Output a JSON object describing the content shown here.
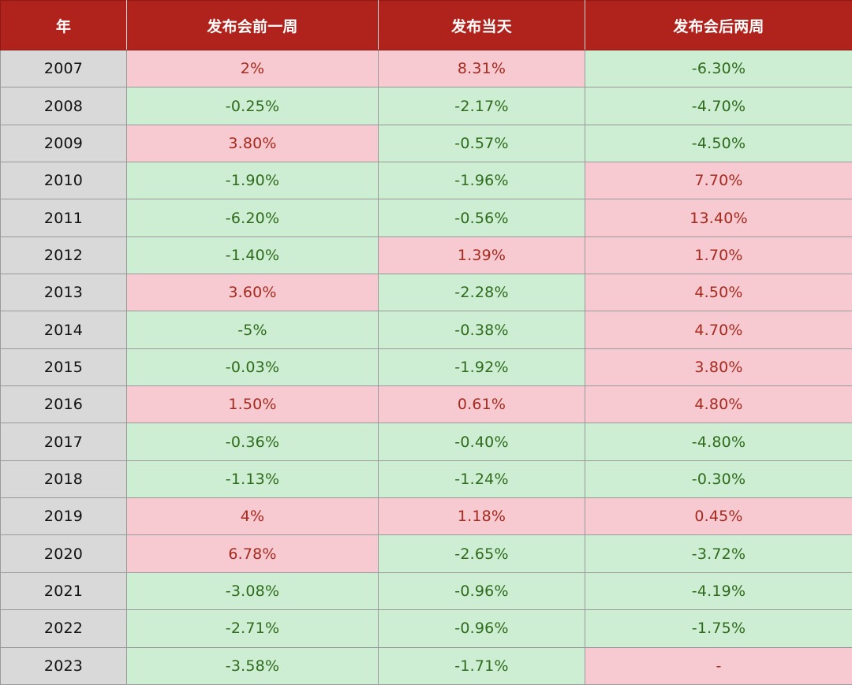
{
  "chart_data": {
    "type": "table",
    "columns": [
      "年",
      "发布会前一周",
      "发布当天",
      "发布会后两周"
    ],
    "rows": [
      {
        "year": "2007",
        "before_week": "2%",
        "launch_day": "8.31%",
        "after_two_weeks": "-6.30%"
      },
      {
        "year": "2008",
        "before_week": "-0.25%",
        "launch_day": "-2.17%",
        "after_two_weeks": "-4.70%"
      },
      {
        "year": "2009",
        "before_week": "3.80%",
        "launch_day": "-0.57%",
        "after_two_weeks": "-4.50%"
      },
      {
        "year": "2010",
        "before_week": "-1.90%",
        "launch_day": "-1.96%",
        "after_two_weeks": "7.70%"
      },
      {
        "year": "2011",
        "before_week": "-6.20%",
        "launch_day": "-0.56%",
        "after_two_weeks": "13.40%"
      },
      {
        "year": "2012",
        "before_week": "-1.40%",
        "launch_day": "1.39%",
        "after_two_weeks": "1.70%"
      },
      {
        "year": "2013",
        "before_week": "3.60%",
        "launch_day": "-2.28%",
        "after_two_weeks": "4.50%"
      },
      {
        "year": "2014",
        "before_week": "-5%",
        "launch_day": "-0.38%",
        "after_two_weeks": "4.70%"
      },
      {
        "year": "2015",
        "before_week": "-0.03%",
        "launch_day": "-1.92%",
        "after_two_weeks": "3.80%"
      },
      {
        "year": "2016",
        "before_week": "1.50%",
        "launch_day": "0.61%",
        "after_two_weeks": "4.80%"
      },
      {
        "year": "2017",
        "before_week": "-0.36%",
        "launch_day": "-0.40%",
        "after_two_weeks": "-4.80%"
      },
      {
        "year": "2018",
        "before_week": "-1.13%",
        "launch_day": "-1.24%",
        "after_two_weeks": "-0.30%"
      },
      {
        "year": "2019",
        "before_week": "4%",
        "launch_day": "1.18%",
        "after_two_weeks": "0.45%"
      },
      {
        "year": "2020",
        "before_week": "6.78%",
        "launch_day": "-2.65%",
        "after_two_weeks": "-3.72%"
      },
      {
        "year": "2021",
        "before_week": "-3.08%",
        "launch_day": "-0.96%",
        "after_two_weeks": "-4.19%"
      },
      {
        "year": "2022",
        "before_week": "-2.71%",
        "launch_day": "-0.96%",
        "after_two_weeks": "-1.75%"
      },
      {
        "year": "2023",
        "before_week": "-3.58%",
        "launch_day": "-1.71%",
        "after_two_weeks": "-"
      }
    ],
    "colors": {
      "header_bg": "#b0221c",
      "header_text": "#ffffff",
      "year_bg": "#d9d9d9",
      "positive_bg": "#f7c9d0",
      "positive_text": "#a52a1f",
      "negative_bg": "#cdeed2",
      "negative_text": "#2f6b1d"
    }
  }
}
